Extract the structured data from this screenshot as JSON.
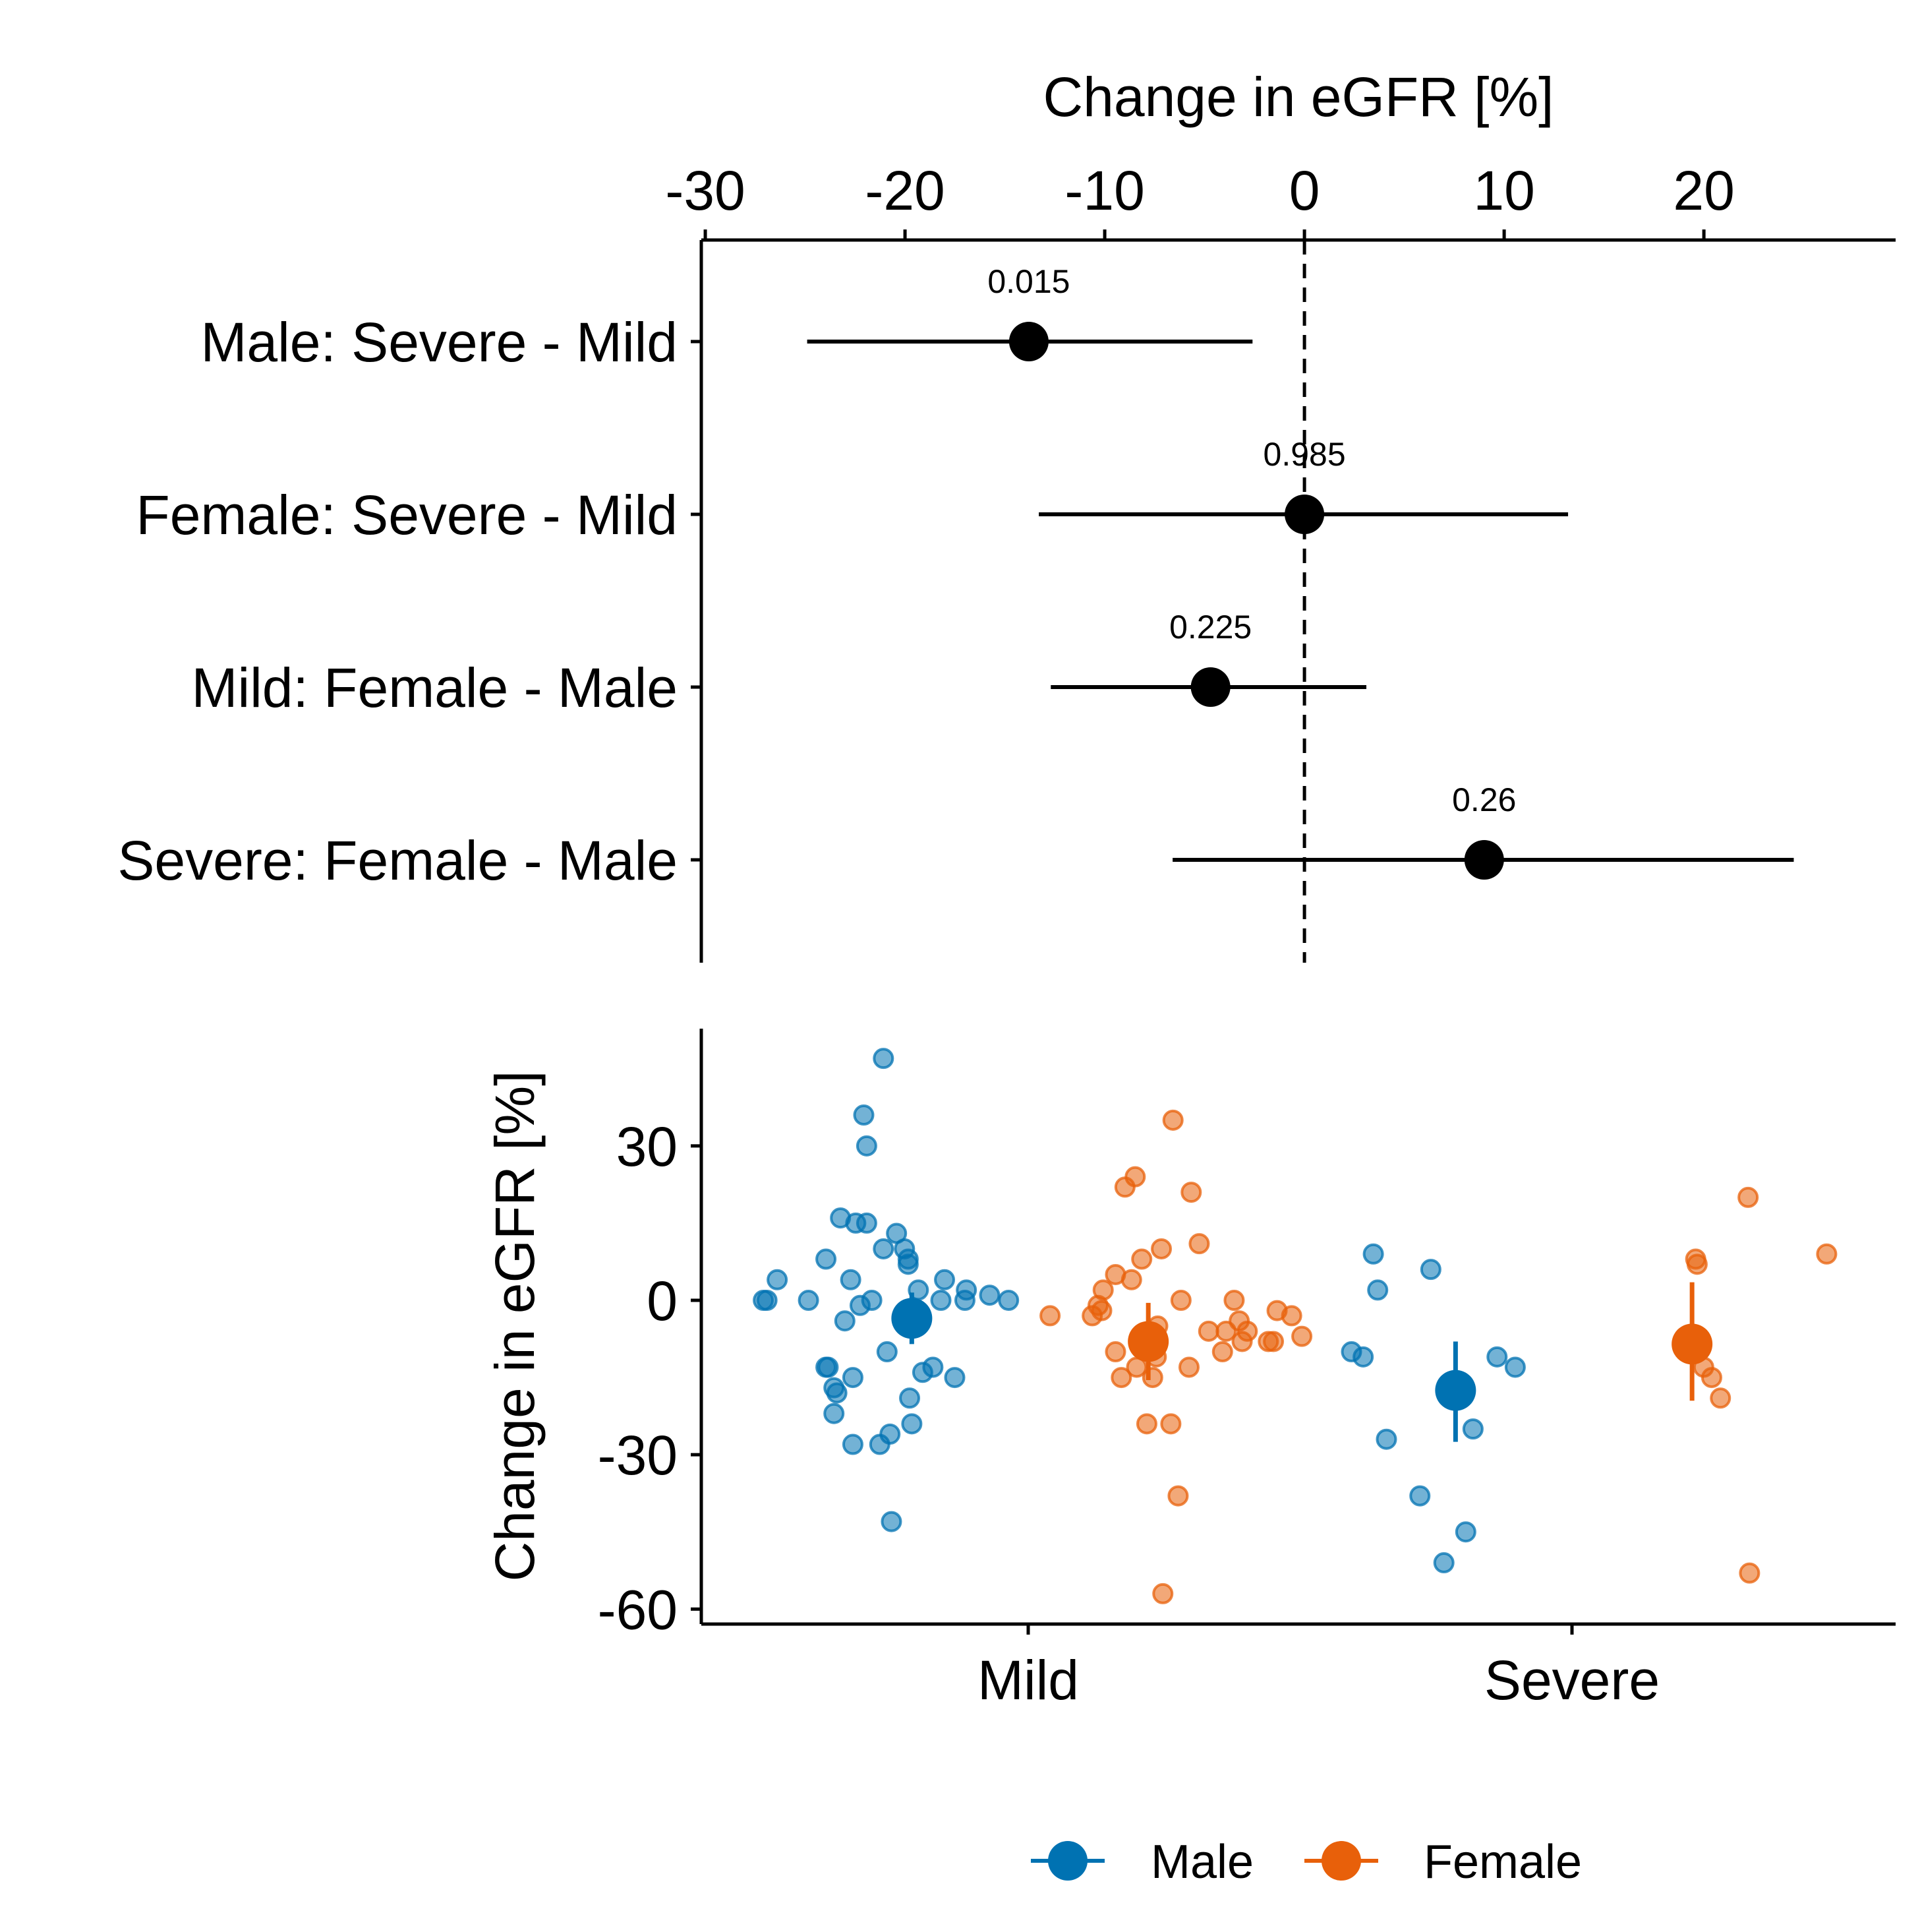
{
  "chart_data": [
    {
      "type": "forest",
      "title": "",
      "xlabel": "Change in eGFR [%]",
      "xlabel_position": "top",
      "xlim": [
        -30.2,
        29.6
      ],
      "xticks": [
        -30,
        -20,
        -10,
        0,
        10,
        20
      ],
      "reference_line": 0,
      "rows": [
        {
          "label": "Male: Severe - Mild",
          "estimate": -13.8,
          "lower": -24.9,
          "upper": -2.6,
          "p": "0.015"
        },
        {
          "label": "Female: Severe - Mild",
          "estimate": 0.0,
          "lower": -13.3,
          "upper": 13.2,
          "p": "0.985"
        },
        {
          "label": "Mild: Female - Male",
          "estimate": -4.7,
          "lower": -12.7,
          "upper": 3.1,
          "p": "0.225"
        },
        {
          "label": "Severe: Female - Male",
          "estimate": 9.0,
          "lower": -6.6,
          "upper": 24.5,
          "p": "0.26"
        }
      ]
    },
    {
      "type": "scatter",
      "title": "",
      "xlabel": "",
      "ylabel": "Change in eGFR [%]",
      "ylim": [
        -62,
        52
      ],
      "yticks": [
        -60,
        -30,
        0,
        30
      ],
      "categories": [
        "Mild",
        "Severe"
      ],
      "legend": {
        "position": "bottom",
        "entries": [
          "Male",
          "Female"
        ]
      },
      "series": [
        {
          "name": "Male",
          "color": "#0072B2",
          "summary": [
            {
              "category": "Mild",
              "mean": -3.5,
              "lower": -8.5,
              "upper": 1.5
            },
            {
              "category": "Severe",
              "mean": -17.5,
              "lower": -27.5,
              "upper": -8
            }
          ],
          "points": [
            {
              "category": "Mild",
              "offset": -0.364,
              "y": 0
            },
            {
              "category": "Mild",
              "offset": -0.359,
              "y": 0
            },
            {
              "category": "Mild",
              "offset": -0.345,
              "y": 4
            },
            {
              "category": "Mild",
              "offset": -0.302,
              "y": 0
            },
            {
              "category": "Mild",
              "offset": -0.278,
              "y": 8
            },
            {
              "category": "Mild",
              "offset": -0.278,
              "y": -13
            },
            {
              "category": "Mild",
              "offset": -0.275,
              "y": -13
            },
            {
              "category": "Mild",
              "offset": -0.267,
              "y": -17
            },
            {
              "category": "Mild",
              "offset": -0.267,
              "y": -22
            },
            {
              "category": "Mild",
              "offset": -0.263,
              "y": -18
            },
            {
              "category": "Mild",
              "offset": -0.258,
              "y": 16
            },
            {
              "category": "Mild",
              "offset": -0.252,
              "y": -4
            },
            {
              "category": "Mild",
              "offset": -0.244,
              "y": 4
            },
            {
              "category": "Mild",
              "offset": -0.241,
              "y": -15
            },
            {
              "category": "Mild",
              "offset": -0.241,
              "y": -28
            },
            {
              "category": "Mild",
              "offset": -0.237,
              "y": 15
            },
            {
              "category": "Mild",
              "offset": -0.231,
              "y": -1
            },
            {
              "category": "Mild",
              "offset": -0.226,
              "y": 36
            },
            {
              "category": "Mild",
              "offset": -0.222,
              "y": 30
            },
            {
              "category": "Mild",
              "offset": -0.222,
              "y": 15
            },
            {
              "category": "Mild",
              "offset": -0.215,
              "y": 0
            },
            {
              "category": "Mild",
              "offset": -0.204,
              "y": -28
            },
            {
              "category": "Mild",
              "offset": -0.199,
              "y": 47
            },
            {
              "category": "Mild",
              "offset": -0.199,
              "y": 10
            },
            {
              "category": "Mild",
              "offset": -0.194,
              "y": -10
            },
            {
              "category": "Mild",
              "offset": -0.19,
              "y": -26
            },
            {
              "category": "Mild",
              "offset": -0.188,
              "y": -43
            },
            {
              "category": "Mild",
              "offset": -0.181,
              "y": 13
            },
            {
              "category": "Mild",
              "offset": -0.17,
              "y": 10
            },
            {
              "category": "Mild",
              "offset": -0.165,
              "y": 7
            },
            {
              "category": "Mild",
              "offset": -0.165,
              "y": 8
            },
            {
              "category": "Mild",
              "offset": -0.163,
              "y": -19
            },
            {
              "category": "Mild",
              "offset": -0.16,
              "y": -24
            },
            {
              "category": "Mild",
              "offset": -0.151,
              "y": 2
            },
            {
              "category": "Mild",
              "offset": -0.145,
              "y": -14
            },
            {
              "category": "Mild",
              "offset": -0.131,
              "y": -13
            },
            {
              "category": "Mild",
              "offset": -0.12,
              "y": 0
            },
            {
              "category": "Mild",
              "offset": -0.115,
              "y": 4
            },
            {
              "category": "Mild",
              "offset": -0.101,
              "y": -15
            },
            {
              "category": "Mild",
              "offset": -0.087,
              "y": 0
            },
            {
              "category": "Mild",
              "offset": -0.085,
              "y": 2
            },
            {
              "category": "Mild",
              "offset": -0.053,
              "y": 1
            },
            {
              "category": "Mild",
              "offset": -0.027,
              "y": 0
            },
            {
              "category": "Severe",
              "offset": -0.303,
              "y": -10
            },
            {
              "category": "Severe",
              "offset": -0.287,
              "y": -11
            },
            {
              "category": "Severe",
              "offset": -0.273,
              "y": 9
            },
            {
              "category": "Severe",
              "offset": -0.267,
              "y": 2
            },
            {
              "category": "Severe",
              "offset": -0.255,
              "y": -27
            },
            {
              "category": "Severe",
              "offset": -0.209,
              "y": -38
            },
            {
              "category": "Severe",
              "offset": -0.194,
              "y": 6
            },
            {
              "category": "Severe",
              "offset": -0.176,
              "y": -51
            },
            {
              "category": "Severe",
              "offset": -0.146,
              "y": -45
            },
            {
              "category": "Severe",
              "offset": -0.136,
              "y": -25
            },
            {
              "category": "Severe",
              "offset": -0.103,
              "y": -11
            },
            {
              "category": "Severe",
              "offset": -0.078,
              "y": -13
            }
          ]
        },
        {
          "name": "Female",
          "color": "#E8600A",
          "summary": [
            {
              "category": "Mild",
              "mean": -8,
              "lower": -15.5,
              "upper": -0.5
            },
            {
              "category": "Severe",
              "mean": -8.5,
              "lower": -19.5,
              "upper": 3.5
            }
          ],
          "points": [
            {
              "category": "Mild",
              "offset": 0.03,
              "y": -3
            },
            {
              "category": "Mild",
              "offset": 0.088,
              "y": -3
            },
            {
              "category": "Mild",
              "offset": 0.096,
              "y": -1
            },
            {
              "category": "Mild",
              "offset": 0.101,
              "y": -2
            },
            {
              "category": "Mild",
              "offset": 0.103,
              "y": 2
            },
            {
              "category": "Mild",
              "offset": 0.12,
              "y": -10
            },
            {
              "category": "Mild",
              "offset": 0.12,
              "y": 5
            },
            {
              "category": "Mild",
              "offset": 0.128,
              "y": -15
            },
            {
              "category": "Mild",
              "offset": 0.133,
              "y": 22
            },
            {
              "category": "Mild",
              "offset": 0.142,
              "y": 4
            },
            {
              "category": "Mild",
              "offset": 0.147,
              "y": 24
            },
            {
              "category": "Mild",
              "offset": 0.149,
              "y": -13
            },
            {
              "category": "Mild",
              "offset": 0.156,
              "y": 8
            },
            {
              "category": "Mild",
              "offset": 0.163,
              "y": -24
            },
            {
              "category": "Mild",
              "offset": 0.171,
              "y": -15
            },
            {
              "category": "Mild",
              "offset": 0.176,
              "y": -11
            },
            {
              "category": "Mild",
              "offset": 0.178,
              "y": -5
            },
            {
              "category": "Mild",
              "offset": 0.183,
              "y": 10
            },
            {
              "category": "Mild",
              "offset": 0.185,
              "y": -57
            },
            {
              "category": "Mild",
              "offset": 0.196,
              "y": -24
            },
            {
              "category": "Mild",
              "offset": 0.199,
              "y": 35
            },
            {
              "category": "Mild",
              "offset": 0.206,
              "y": -38
            },
            {
              "category": "Mild",
              "offset": 0.21,
              "y": 0
            },
            {
              "category": "Mild",
              "offset": 0.221,
              "y": -13
            },
            {
              "category": "Mild",
              "offset": 0.224,
              "y": 21
            },
            {
              "category": "Mild",
              "offset": 0.235,
              "y": 11
            },
            {
              "category": "Mild",
              "offset": 0.248,
              "y": -6
            },
            {
              "category": "Mild",
              "offset": 0.267,
              "y": -10
            },
            {
              "category": "Mild",
              "offset": 0.272,
              "y": -6
            },
            {
              "category": "Mild",
              "offset": 0.283,
              "y": 0
            },
            {
              "category": "Mild",
              "offset": 0.29,
              "y": -4
            },
            {
              "category": "Mild",
              "offset": 0.294,
              "y": -8
            },
            {
              "category": "Mild",
              "offset": 0.301,
              "y": -6
            },
            {
              "category": "Mild",
              "offset": 0.33,
              "y": -8
            },
            {
              "category": "Mild",
              "offset": 0.337,
              "y": -8
            },
            {
              "category": "Mild",
              "offset": 0.342,
              "y": -2
            },
            {
              "category": "Mild",
              "offset": 0.362,
              "y": -3
            },
            {
              "category": "Mild",
              "offset": 0.376,
              "y": -7
            },
            {
              "category": "Severe",
              "offset": 0.17,
              "y": 8
            },
            {
              "category": "Severe",
              "offset": 0.172,
              "y": 7
            },
            {
              "category": "Severe",
              "offset": 0.181,
              "y": -13
            },
            {
              "category": "Severe",
              "offset": 0.192,
              "y": -15
            },
            {
              "category": "Severe",
              "offset": 0.204,
              "y": -19
            },
            {
              "category": "Severe",
              "offset": 0.242,
              "y": 20
            },
            {
              "category": "Severe",
              "offset": 0.244,
              "y": -53
            },
            {
              "category": "Severe",
              "offset": 0.35,
              "y": 9
            }
          ]
        }
      ]
    }
  ]
}
